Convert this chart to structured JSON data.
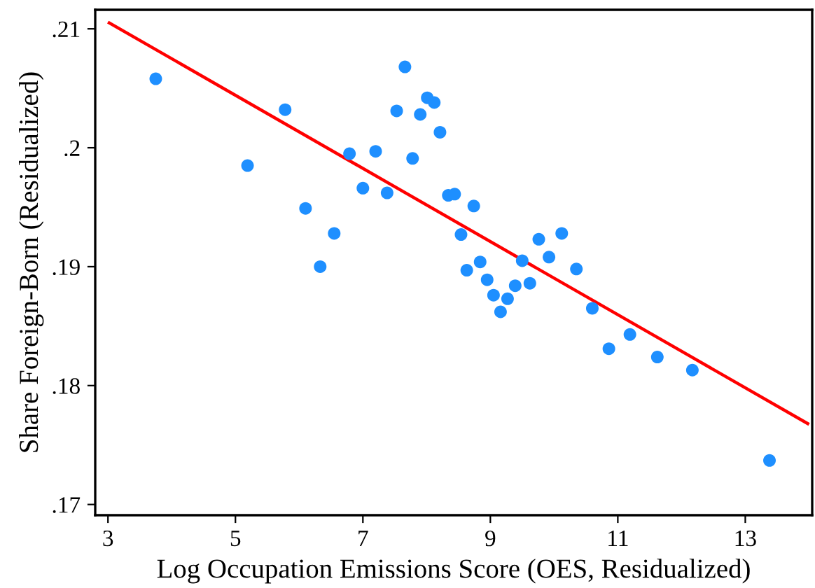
{
  "chart_data": {
    "type": "scatter",
    "xlabel": "Log Occupation Emissions Score (OES, Residualized)",
    "ylabel": "Share Foreign-Born (Residualized)",
    "xlim": [
      2.8,
      14.05
    ],
    "ylim": [
      0.1691,
      0.2116
    ],
    "xticks": [
      3,
      5,
      7,
      9,
      11,
      13
    ],
    "yticks": [
      {
        "value": 0.17,
        "label": ".17"
      },
      {
        "value": 0.18,
        "label": ".18"
      },
      {
        "value": 0.19,
        "label": ".19"
      },
      {
        "value": 0.2,
        "label": ".2"
      },
      {
        "value": 0.21,
        "label": ".21"
      }
    ],
    "grid": false,
    "series": [
      {
        "marker": "circle",
        "color": "#1e8fff",
        "x": [
          3.75,
          5.19,
          5.78,
          6.1,
          6.33,
          6.55,
          6.79,
          7.0,
          7.2,
          7.38,
          7.53,
          7.66,
          7.78,
          7.9,
          8.01,
          8.12,
          8.21,
          8.34,
          8.44,
          8.74,
          8.54,
          8.63,
          8.84,
          8.95,
          9.05,
          9.16,
          9.27,
          9.39,
          9.5,
          9.62,
          9.76,
          9.92,
          10.12,
          10.35,
          10.6,
          10.86,
          11.19,
          11.62,
          12.17,
          13.38
        ],
        "values": [
          0.2058,
          0.1985,
          0.2032,
          0.1949,
          0.19,
          0.1928,
          0.1995,
          0.1966,
          0.1997,
          0.1962,
          0.2031,
          0.2068,
          0.1991,
          0.2028,
          0.2042,
          0.2038,
          0.2013,
          0.196,
          0.1961,
          0.1951,
          0.1927,
          0.1897,
          0.1904,
          0.1889,
          0.1876,
          0.1862,
          0.1873,
          0.1884,
          0.1905,
          0.1886,
          0.1923,
          0.1908,
          0.1928,
          0.1898,
          0.1865,
          0.1831,
          0.1843,
          0.1824,
          0.1813,
          0.1737
        ]
      },
      {
        "type": "line",
        "color": "#ff0000",
        "x": [
          3.02,
          13.98
        ],
        "values": [
          0.2105,
          0.1768
        ]
      }
    ]
  }
}
